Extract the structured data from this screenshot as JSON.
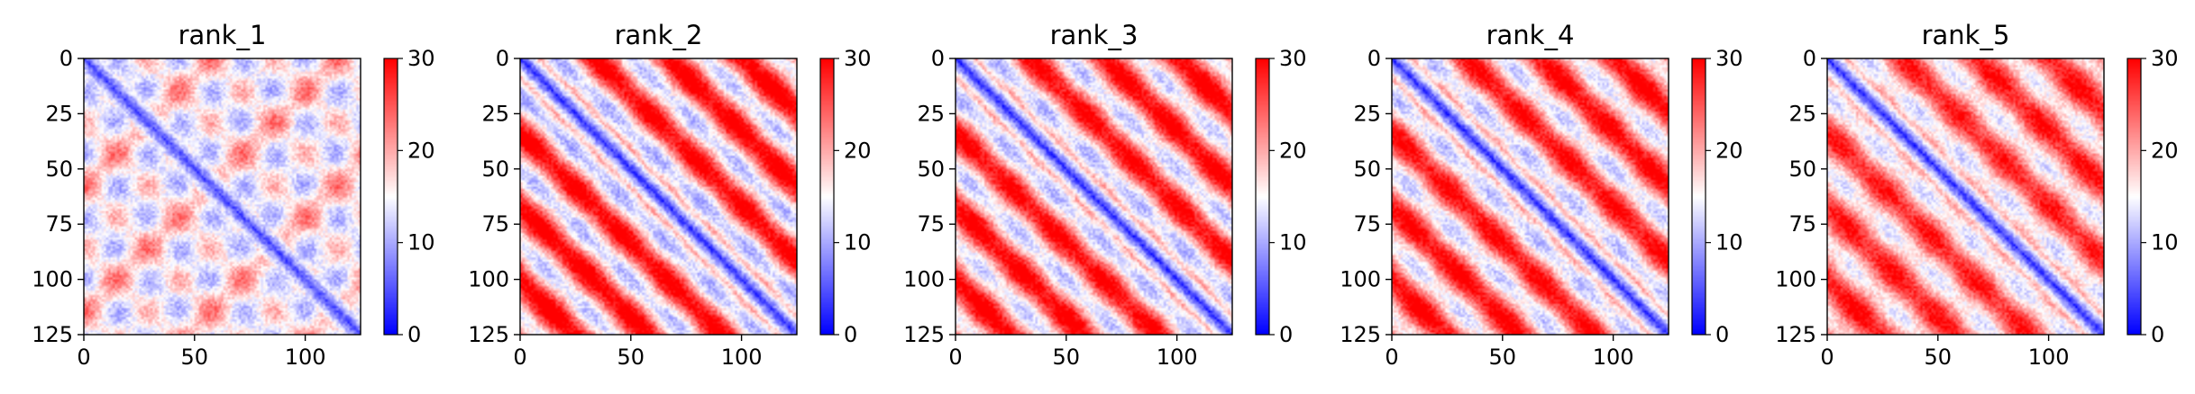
{
  "chart_data": {
    "type": "heatmap",
    "colormap": [
      "#0000ff",
      "#ffffff",
      "#ff0000"
    ],
    "color_range": [
      0,
      30
    ],
    "colorbar_ticks": [
      0,
      10,
      20,
      30
    ],
    "x_ticks": [
      0,
      50,
      100
    ],
    "y_ticks": [
      0,
      25,
      50,
      75,
      100,
      125
    ],
    "xlim": [
      0,
      125
    ],
    "ylim": [
      125,
      0
    ],
    "size": 125,
    "panels": [
      {
        "title": "rank_1",
        "pattern": "checker"
      },
      {
        "title": "rank_2",
        "pattern": "stripes"
      },
      {
        "title": "rank_3",
        "pattern": "stripes"
      },
      {
        "title": "rank_4",
        "pattern": "stripes"
      },
      {
        "title": "rank_5",
        "pattern": "stripes"
      }
    ]
  }
}
